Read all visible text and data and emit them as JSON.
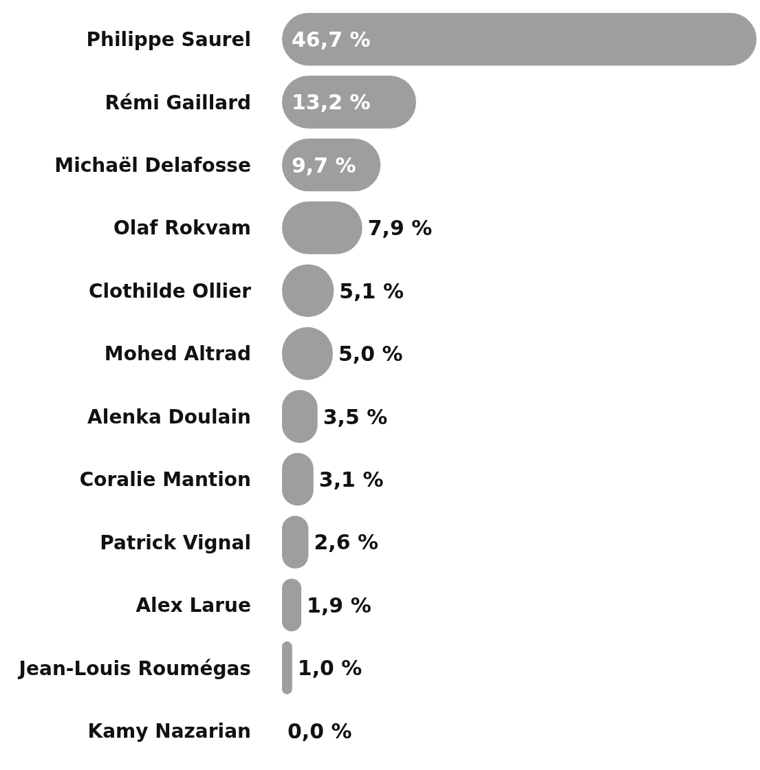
{
  "chart_data": {
    "type": "bar",
    "orientation": "horizontal",
    "categories": [
      "Philippe Saurel",
      "Rémi Gaillard",
      "Michaël Delafosse",
      "Olaf Rokvam",
      "Clothilde Ollier",
      "Mohed Altrad",
      "Alenka Doulain",
      "Coralie Mantion",
      "Patrick Vignal",
      "Alex Larue",
      "Jean-Louis Roumégas",
      "Kamy Nazarian"
    ],
    "values": [
      46.7,
      13.2,
      9.7,
      7.9,
      5.1,
      5.0,
      3.5,
      3.1,
      2.6,
      1.9,
      1.0,
      0.0
    ],
    "value_labels": [
      "46,7 %",
      "13,2 %",
      "9,7 %",
      "7,9 %",
      "5,1 %",
      "5,0 %",
      "3,5 %",
      "3,1 %",
      "2,6 %",
      "1,9 %",
      "1,0 %",
      "0,0 %"
    ],
    "color": "#9e9e9e"
  }
}
